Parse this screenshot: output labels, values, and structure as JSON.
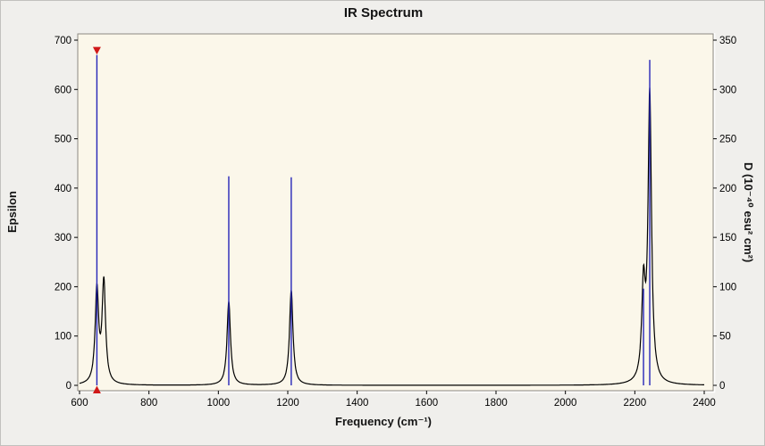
{
  "figure": {
    "background": "#f0efec",
    "plot_background": "#fbf7ea"
  },
  "chart_data": {
    "type": "line",
    "title": "IR Spectrum",
    "xlabel": "Frequency (cm⁻¹)",
    "ylabel_left": "Epsilon",
    "ylabel_right": "D (10⁻⁴⁰ esu² cm²)",
    "grid": false,
    "legend": false,
    "x_axis": {
      "min": 600,
      "max": 2400,
      "ticks": [
        600,
        800,
        1000,
        1200,
        1400,
        1600,
        1800,
        2000,
        2200,
        2400
      ]
    },
    "y_axis_left": {
      "min": 0,
      "max": 700,
      "ticks": [
        0,
        100,
        200,
        300,
        400,
        500,
        600,
        700
      ]
    },
    "y_axis_right": {
      "min": 0,
      "max": 350,
      "ticks": [
        0,
        50,
        100,
        150,
        200,
        250,
        300,
        350
      ]
    },
    "epsilon_curve": {
      "color": "#000000",
      "profile": "lorentzian",
      "hwhm_cm1": 6,
      "peaks": [
        {
          "frequency": 650,
          "epsilon": 190
        },
        {
          "frequency": 670,
          "epsilon": 205
        },
        {
          "frequency": 1030,
          "epsilon": 170
        },
        {
          "frequency": 1210,
          "epsilon": 193
        },
        {
          "frequency": 2225,
          "epsilon": 185
        },
        {
          "frequency": 2243,
          "epsilon": 585
        }
      ]
    },
    "dipole_sticks": {
      "color": "#2626b8",
      "points": [
        {
          "frequency": 650,
          "d": 335,
          "selected": true
        },
        {
          "frequency": 1030,
          "d": 212,
          "selected": false
        },
        {
          "frequency": 1210,
          "d": 211,
          "selected": false
        },
        {
          "frequency": 2225,
          "d": 98,
          "selected": false
        },
        {
          "frequency": 2243,
          "d": 330,
          "selected": false
        }
      ]
    },
    "selection_marker_color": "#d01818"
  }
}
